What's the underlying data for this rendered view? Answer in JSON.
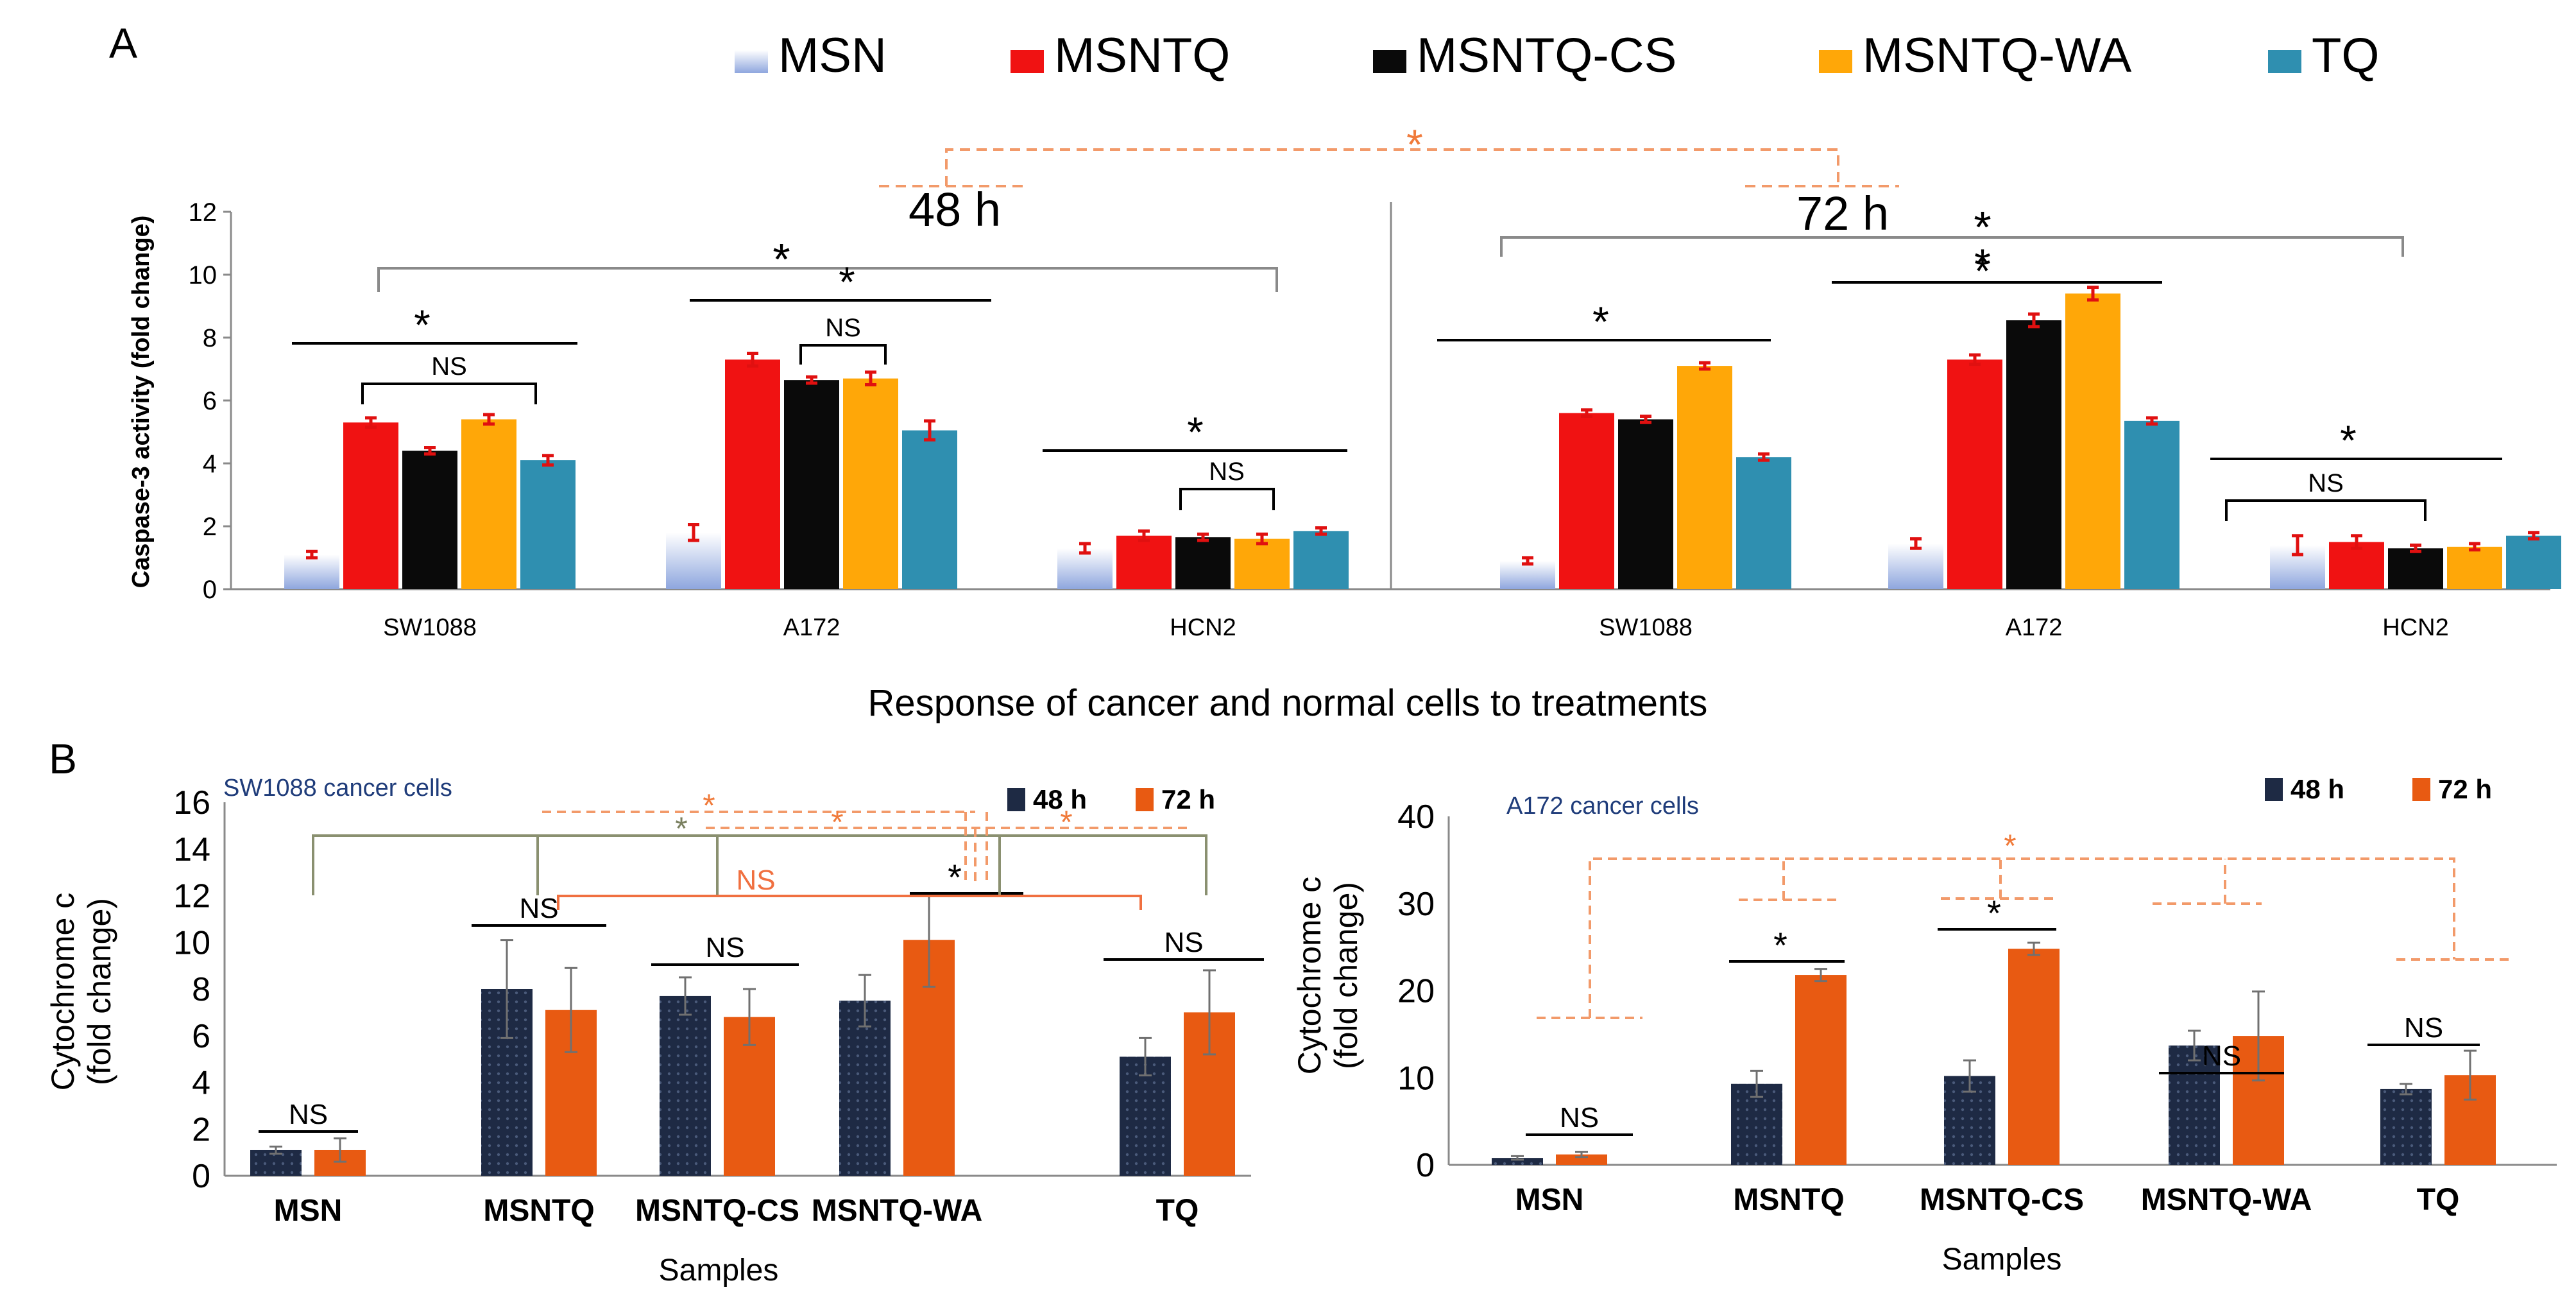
{
  "colors": {
    "MSN": "#c3d1ee",
    "MSNTQ": "#f01212",
    "MSNTQ-CS": "#0a0a0a",
    "MSNTQ-WA": "#ffa708",
    "TQ": "#2f8fb0",
    "48h": "#1e2a44",
    "72h": "#e85a12",
    "sig_orange": "#f29a6a",
    "axis": "#8a8a8a",
    "caption_blue": "#1f3c7a"
  },
  "chart_data": [
    {
      "id": "A",
      "panel_label": "A",
      "type": "bar",
      "title": "",
      "xlabel": "Response of cancer and normal cells to treatments",
      "ylabel": "Caspase-3 activity (fold change)",
      "ylim": [
        0,
        12
      ],
      "yticks": [
        "0",
        "2",
        "4",
        "6",
        "8",
        "10",
        "12"
      ],
      "legend": [
        "MSN",
        "MSNTQ",
        "MSNTQ-CS",
        "MSNTQ-WA",
        "TQ"
      ],
      "legend_position": "top",
      "groups": [
        {
          "label": "48 h",
          "categories": [
            "SW1088",
            "A172",
            "HCN2"
          ]
        },
        {
          "label": "72 h",
          "categories": [
            "SW1088",
            "A172",
            "HCN2"
          ]
        }
      ],
      "series": [
        {
          "name": "MSN",
          "values": [
            1.1,
            1.8,
            1.3,
            0.9,
            1.45,
            1.4
          ],
          "errors": [
            0.1,
            0.25,
            0.15,
            0.1,
            0.15,
            0.3
          ]
        },
        {
          "name": "MSNTQ",
          "values": [
            5.3,
            7.3,
            1.7,
            5.6,
            7.3,
            1.5
          ],
          "errors": [
            0.15,
            0.2,
            0.15,
            0.1,
            0.15,
            0.2
          ]
        },
        {
          "name": "MSNTQ-CS",
          "values": [
            4.4,
            6.65,
            1.65,
            5.4,
            8.55,
            1.3
          ],
          "errors": [
            0.1,
            0.1,
            0.1,
            0.1,
            0.2,
            0.1
          ]
        },
        {
          "name": "MSNTQ-WA",
          "values": [
            5.4,
            6.7,
            1.6,
            7.1,
            9.4,
            1.35
          ],
          "errors": [
            0.15,
            0.2,
            0.15,
            0.1,
            0.2,
            0.1
          ]
        },
        {
          "name": "TQ",
          "values": [
            4.1,
            5.05,
            1.85,
            4.2,
            5.35,
            1.7
          ],
          "errors": [
            0.15,
            0.3,
            0.1,
            0.1,
            0.1,
            0.1
          ]
        }
      ],
      "annotations": {
        "star": "*",
        "ns": "NS"
      }
    },
    {
      "id": "B1",
      "panel_label": "B",
      "type": "bar",
      "title": "SW1088 cancer cells",
      "xlabel": "Samples",
      "ylabel_lines": [
        "Cytochrome c",
        "(fold change)"
      ],
      "ylim": [
        0,
        16
      ],
      "yticks": [
        "0",
        "2",
        "4",
        "6",
        "8",
        "10",
        "12",
        "14",
        "16"
      ],
      "categories": [
        "MSN",
        "MSNTQ",
        "MSNTQ-CS",
        "MSNTQ-WA",
        "TQ"
      ],
      "legend": [
        "48 h",
        "72 h"
      ],
      "legend_position": "top-right",
      "series": [
        {
          "name": "48 h",
          "values": [
            1.1,
            8.0,
            7.7,
            7.5,
            5.1
          ],
          "errors": [
            0.15,
            2.1,
            0.8,
            1.1,
            0.8
          ]
        },
        {
          "name": "72 h",
          "values": [
            1.1,
            7.1,
            6.8,
            10.1,
            7.0
          ],
          "errors": [
            0.5,
            1.8,
            1.2,
            2.0,
            1.8
          ]
        }
      ],
      "annotations": {
        "star": "*",
        "ns": "NS"
      }
    },
    {
      "id": "B2",
      "type": "bar",
      "title": "A172 cancer cells",
      "xlabel": "Samples",
      "ylabel_lines": [
        "Cytochrome c",
        "(fold change)"
      ],
      "ylim": [
        0,
        40
      ],
      "yticks": [
        "0",
        "10",
        "20",
        "30",
        "40"
      ],
      "categories": [
        "MSN",
        "MSNTQ",
        "MSNTQ-CS",
        "MSNTQ-WA",
        "TQ"
      ],
      "legend": [
        "48 h",
        "72 h"
      ],
      "legend_position": "top-right",
      "series": [
        {
          "name": "48 h",
          "values": [
            0.8,
            9.3,
            10.2,
            13.7,
            8.7
          ],
          "errors": [
            0.2,
            1.5,
            1.8,
            1.7,
            0.6
          ]
        },
        {
          "name": "72 h",
          "values": [
            1.2,
            21.8,
            24.8,
            14.8,
            10.3
          ],
          "errors": [
            0.3,
            0.7,
            0.7,
            5.1,
            2.8
          ]
        }
      ],
      "annotations": {
        "star": "*",
        "ns": "NS"
      }
    }
  ]
}
